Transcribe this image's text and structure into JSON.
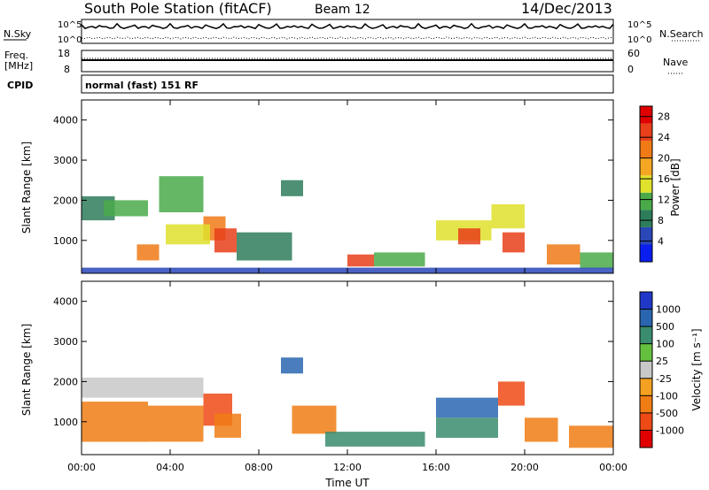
{
  "header": {
    "title": "South Pole Station (fitACF)",
    "beam": "Beam 12",
    "date": "14/Dec/2013"
  },
  "strip_labels": {
    "nsky": "N.Sky",
    "nsearch": "N.Search",
    "freq": "Freq.",
    "freq_unit": "[MHz]",
    "nave": "Nave",
    "cpid": "CPID",
    "cpid_value": "normal (fast) 151 RF",
    "noise_ticks_left": [
      "10^5",
      "10^0"
    ],
    "noise_ticks_right": [
      "10^5",
      "10^0"
    ],
    "freq_ticks": [
      "18",
      "8"
    ],
    "nave_ticks": [
      "60",
      "0"
    ]
  },
  "colors": {
    "power_scale": [
      "#0a1ef0",
      "#2a47b8",
      "#2e7d5a",
      "#4aaa4a",
      "#dfe12c",
      "#f5a623",
      "#f07a16",
      "#e8401a",
      "#e00000"
    ],
    "velocity_scale": [
      "#2038c8",
      "#2a66b0",
      "#3a8c6e",
      "#66c040",
      "#c8c8c8",
      "#f4a020",
      "#f07c14",
      "#ee4a16",
      "#e00000"
    ]
  },
  "chart_data": [
    {
      "type": "heatmap",
      "title": "",
      "xlabel": "",
      "ylabel": "Slant Range [km]",
      "xlim": [
        "00:00",
        "00:00"
      ],
      "ylim": [
        180,
        4500
      ],
      "x_ticks": [
        "00:00",
        "04:00",
        "08:00",
        "12:00",
        "16:00",
        "20:00",
        "00:00"
      ],
      "y_ticks": [
        1000,
        2000,
        3000,
        4000
      ],
      "colorbar": {
        "label": "Power [dB]",
        "ticks": [
          4,
          8,
          12,
          16,
          20,
          24,
          28
        ],
        "range": [
          0,
          30
        ]
      },
      "regions": [
        {
          "t0": 0.0,
          "t1": 1.5,
          "r0": 1500,
          "r1": 2100,
          "value": 8
        },
        {
          "t0": 1.0,
          "t1": 3.0,
          "r0": 1600,
          "r1": 2000,
          "value": 12
        },
        {
          "t0": 3.5,
          "t1": 5.5,
          "r0": 1700,
          "r1": 2600,
          "value": 12
        },
        {
          "t0": 5.5,
          "t1": 6.5,
          "r0": 1000,
          "r1": 1600,
          "value": 20
        },
        {
          "t0": 6.0,
          "t1": 7.0,
          "r0": 700,
          "r1": 1300,
          "value": 24
        },
        {
          "t0": 2.5,
          "t1": 3.5,
          "r0": 500,
          "r1": 900,
          "value": 20
        },
        {
          "t0": 3.8,
          "t1": 5.8,
          "r0": 900,
          "r1": 1400,
          "value": 16
        },
        {
          "t0": 9.0,
          "t1": 10.0,
          "r0": 2100,
          "r1": 2500,
          "value": 8
        },
        {
          "t0": 7.0,
          "t1": 9.5,
          "r0": 500,
          "r1": 1200,
          "value": 8
        },
        {
          "t0": 12.0,
          "t1": 13.2,
          "r0": 350,
          "r1": 650,
          "value": 24
        },
        {
          "t0": 13.2,
          "t1": 15.5,
          "r0": 350,
          "r1": 700,
          "value": 12
        },
        {
          "t0": 16.0,
          "t1": 18.5,
          "r0": 1000,
          "r1": 1500,
          "value": 16
        },
        {
          "t0": 17.0,
          "t1": 18.0,
          "r0": 900,
          "r1": 1300,
          "value": 24
        },
        {
          "t0": 18.5,
          "t1": 20.0,
          "r0": 1300,
          "r1": 1900,
          "value": 16
        },
        {
          "t0": 19.0,
          "t1": 20.0,
          "r0": 700,
          "r1": 1200,
          "value": 24
        },
        {
          "t0": 21.0,
          "t1": 22.5,
          "r0": 400,
          "r1": 900,
          "value": 20
        },
        {
          "t0": 22.5,
          "t1": 24.0,
          "r0": 300,
          "r1": 700,
          "value": 12
        },
        {
          "t0": 0.0,
          "t1": 24.0,
          "r0": 180,
          "r1": 320,
          "value": 4
        }
      ]
    },
    {
      "type": "heatmap",
      "title": "",
      "xlabel": "Time UT",
      "ylabel": "Slant Range [km]",
      "xlim": [
        "00:00",
        "00:00"
      ],
      "ylim": [
        180,
        4500
      ],
      "x_ticks": [
        "00:00",
        "04:00",
        "08:00",
        "12:00",
        "16:00",
        "20:00",
        "00:00"
      ],
      "y_ticks": [
        1000,
        2000,
        3000,
        4000
      ],
      "colorbar": {
        "label": "Velocity [m s⁻¹]",
        "ticks": [
          1000,
          500,
          100,
          25,
          -25,
          -100,
          -500,
          -1000
        ],
        "range": [
          -1000,
          1000
        ]
      },
      "regions": [
        {
          "t0": 0.0,
          "t1": 5.5,
          "r0": 1600,
          "r1": 2100,
          "value": 0
        },
        {
          "t0": 0.0,
          "t1": 3.0,
          "r0": 500,
          "r1": 1500,
          "value": -300
        },
        {
          "t0": 3.0,
          "t1": 5.5,
          "r0": 500,
          "r1": 1400,
          "value": -200
        },
        {
          "t0": 5.5,
          "t1": 6.8,
          "r0": 900,
          "r1": 1700,
          "value": -700
        },
        {
          "t0": 6.0,
          "t1": 7.2,
          "r0": 600,
          "r1": 1200,
          "value": -300
        },
        {
          "t0": 9.0,
          "t1": 10.0,
          "r0": 2200,
          "r1": 2600,
          "value": 900
        },
        {
          "t0": 9.5,
          "t1": 11.5,
          "r0": 700,
          "r1": 1400,
          "value": -200
        },
        {
          "t0": 11.0,
          "t1": 15.5,
          "r0": 380,
          "r1": 750,
          "value": 150
        },
        {
          "t0": 16.0,
          "t1": 18.8,
          "r0": 1100,
          "r1": 1600,
          "value": 800
        },
        {
          "t0": 16.0,
          "t1": 18.8,
          "r0": 600,
          "r1": 1100,
          "value": 300
        },
        {
          "t0": 18.8,
          "t1": 20.0,
          "r0": 1400,
          "r1": 2000,
          "value": -900
        },
        {
          "t0": 20.0,
          "t1": 21.5,
          "r0": 500,
          "r1": 1100,
          "value": -300
        },
        {
          "t0": 22.0,
          "t1": 24.0,
          "r0": 350,
          "r1": 900,
          "value": -200
        }
      ]
    }
  ]
}
